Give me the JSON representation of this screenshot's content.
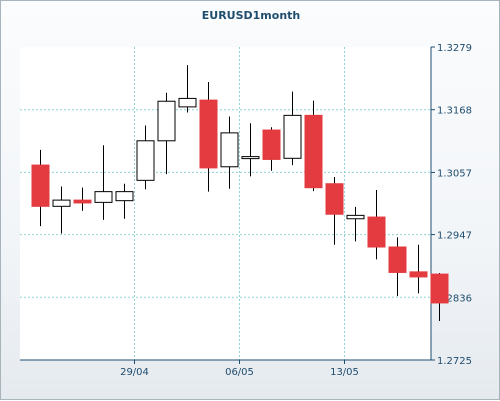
{
  "chart_data": {
    "type": "candlestick",
    "title": "EURUSD1month",
    "xlabel": "",
    "ylabel": "",
    "ylim": [
      1.2725,
      1.3279
    ],
    "y_ticks": [
      "1.3279",
      "1.3168",
      "1.3057",
      "1.2947",
      "1.2836",
      "1.2725"
    ],
    "x_tick_labels": [
      {
        "label": "29/04",
        "index": 4.5
      },
      {
        "label": "06/05",
        "index": 9.5
      },
      {
        "label": "13/05",
        "index": 14.5
      }
    ],
    "grid": true,
    "axis_position": "right",
    "colors": {
      "up_fill": "#ffffff",
      "up_stroke": "#000000",
      "down_fill": "#e33b3f",
      "down_stroke": "#e33b3f",
      "grid": "#8fd3d3",
      "axis": "#1f4d6e"
    },
    "candles": [
      {
        "open": 1.307,
        "high": 1.3097,
        "low": 1.2962,
        "close": 1.2997
      },
      {
        "open": 1.2997,
        "high": 1.3032,
        "low": 1.2949,
        "close": 1.3008
      },
      {
        "open": 1.3008,
        "high": 1.303,
        "low": 1.2989,
        "close": 1.3003
      },
      {
        "open": 1.3004,
        "high": 1.3105,
        "low": 1.2973,
        "close": 1.3023
      },
      {
        "open": 1.3007,
        "high": 1.3037,
        "low": 1.2975,
        "close": 1.3023
      },
      {
        "open": 1.3043,
        "high": 1.314,
        "low": 1.3027,
        "close": 1.3113
      },
      {
        "open": 1.3113,
        "high": 1.3198,
        "low": 1.3054,
        "close": 1.3183
      },
      {
        "open": 1.3173,
        "high": 1.3247,
        "low": 1.3163,
        "close": 1.3188
      },
      {
        "open": 1.3185,
        "high": 1.3217,
        "low": 1.3023,
        "close": 1.3065
      },
      {
        "open": 1.3067,
        "high": 1.3156,
        "low": 1.3028,
        "close": 1.3127
      },
      {
        "open": 1.3082,
        "high": 1.3144,
        "low": 1.305,
        "close": 1.3085
      },
      {
        "open": 1.3132,
        "high": 1.3137,
        "low": 1.306,
        "close": 1.308
      },
      {
        "open": 1.3082,
        "high": 1.32,
        "low": 1.307,
        "close": 1.3158
      },
      {
        "open": 1.3158,
        "high": 1.3184,
        "low": 1.3024,
        "close": 1.303
      },
      {
        "open": 1.3037,
        "high": 1.3049,
        "low": 1.2929,
        "close": 1.2983
      },
      {
        "open": 1.2975,
        "high": 1.2996,
        "low": 1.2935,
        "close": 1.2981
      },
      {
        "open": 1.2978,
        "high": 1.3026,
        "low": 1.2903,
        "close": 1.2925
      },
      {
        "open": 1.2925,
        "high": 1.2942,
        "low": 1.2838,
        "close": 1.288
      },
      {
        "open": 1.2881,
        "high": 1.2929,
        "low": 1.2843,
        "close": 1.2872
      },
      {
        "open": 1.2877,
        "high": 1.2879,
        "low": 1.2794,
        "close": 1.2826
      }
    ]
  }
}
